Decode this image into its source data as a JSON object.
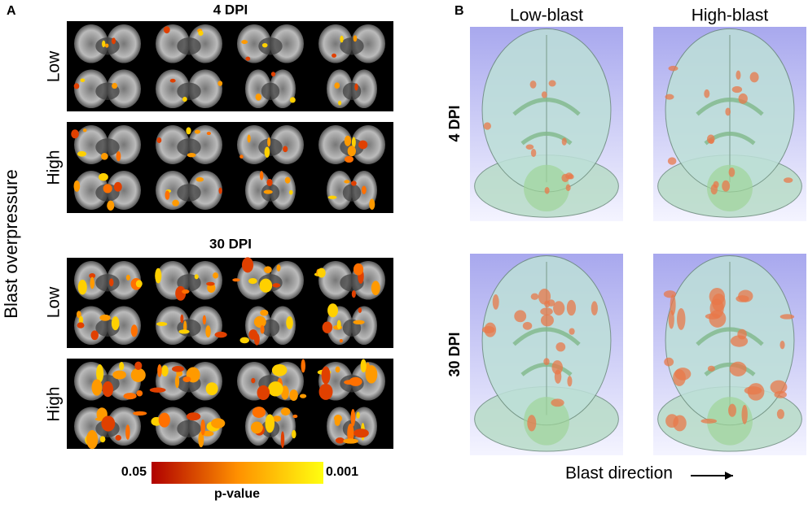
{
  "panel_a": {
    "label": "A",
    "y_axis_label": "Blast overpressure",
    "groups": [
      {
        "title": "4 DPI",
        "rows": [
          "Low",
          "High"
        ]
      },
      {
        "title": "30 DPI",
        "rows": [
          "Low",
          "High"
        ]
      }
    ],
    "colorbar": {
      "min_label": "0.05",
      "max_label": "0.001",
      "title": "p-value"
    }
  },
  "panel_b": {
    "label": "B",
    "columns": [
      "Low-blast",
      "High-blast"
    ],
    "rows": [
      "4 DPI",
      "30 DPI"
    ],
    "x_axis_label": "Blast direction"
  }
}
